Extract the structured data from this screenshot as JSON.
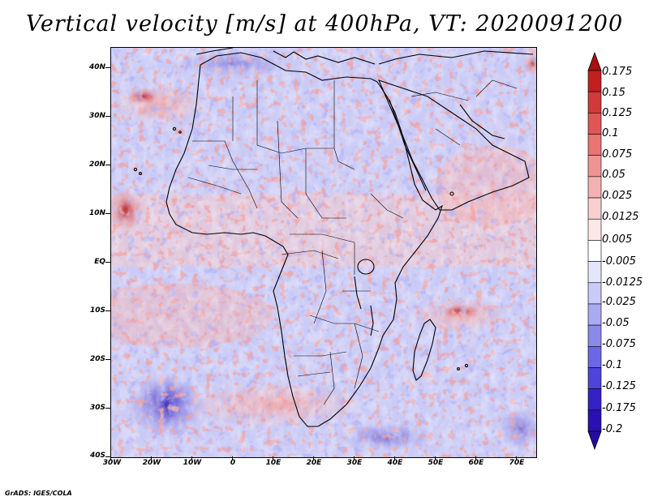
{
  "title": "Vertical velocity [m/s] at 400hPa, VT: 2020091200",
  "footer": "GrADS: IGES/COLA",
  "colors": {
    "positive_strong": "#b21a1a",
    "positive_mid": "#e06060",
    "positive_light": "#f0b4b4",
    "neutral": "#ffffff",
    "negative_light": "#c3c4f4",
    "negative_mid": "#7a7cf0",
    "negative_strong": "#2a10b0",
    "coastline": "#000000"
  },
  "axes": {
    "lat_labels": [
      "40N",
      "30N",
      "20N",
      "10N",
      "EQ",
      "10S",
      "20S",
      "30S",
      "40S"
    ],
    "lon_labels": [
      "30W",
      "20W",
      "10W",
      "0",
      "10E",
      "20E",
      "30E",
      "40E",
      "50E",
      "60E",
      "70E"
    ]
  },
  "colorbar": {
    "levels": [
      "0.175",
      "0.15",
      "0.125",
      "0.1",
      "0.075",
      "0.05",
      "0.025",
      "0.0125",
      "0.005",
      "-0.005",
      "-0.0125",
      "-0.025",
      "-0.05",
      "-0.075",
      "-0.1",
      "-0.125",
      "-0.175",
      "-0.2"
    ],
    "swatch_colors": [
      "#a81010",
      "#c02020",
      "#d03a3a",
      "#de5656",
      "#e87474",
      "#ee9494",
      "#f3b2b2",
      "#f8d0d0",
      "#fce8e8",
      "#ffffff",
      "#e6e6fb",
      "#c9caf6",
      "#a9aaf0",
      "#8a8aeb",
      "#6a68e4",
      "#4c45d8",
      "#3422c4",
      "#2a10b0",
      "#240ca0"
    ]
  },
  "map": {
    "region": "Africa",
    "lon_range": [
      -30,
      75
    ],
    "lat_range": [
      -40,
      45
    ]
  }
}
